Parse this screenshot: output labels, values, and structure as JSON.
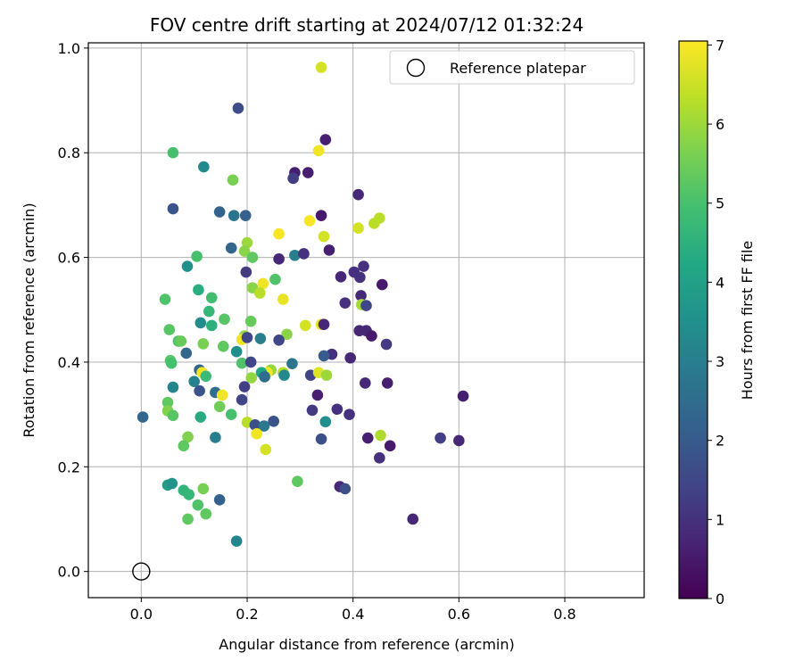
{
  "chart_data": {
    "type": "scatter",
    "title": "FOV centre drift starting at 2024/07/12 01:32:24",
    "xlabel": "Angular distance from reference (arcmin)",
    "ylabel": "Rotation from reference (arcmin)",
    "xlim": [
      -0.1,
      0.95
    ],
    "ylim": [
      -0.05,
      1.01
    ],
    "x_ticks": [
      "0.0",
      "0.2",
      "0.4",
      "0.6",
      "0.8"
    ],
    "y_ticks": [
      "0.0",
      "0.2",
      "0.4",
      "0.6",
      "0.8",
      "1.0"
    ],
    "grid": true,
    "colorbar": {
      "label": "Hours from first FF file",
      "colormap": "viridis",
      "range": [
        0,
        7.05
      ],
      "ticks": [
        "0",
        "1",
        "2",
        "3",
        "4",
        "5",
        "6",
        "7"
      ]
    },
    "legend": {
      "position": "top-right",
      "entries": [
        {
          "label": "Reference platepar",
          "marker": "open-circle",
          "x": 0.0,
          "y": 0.0
        }
      ]
    },
    "points": [
      [
        0.34,
        0.963,
        6.6
      ],
      [
        0.183,
        0.885,
        1.6
      ],
      [
        0.348,
        0.825,
        0.6
      ],
      [
        0.06,
        0.8,
        5.0
      ],
      [
        0.335,
        0.804,
        6.9
      ],
      [
        0.118,
        0.773,
        3.3
      ],
      [
        0.173,
        0.748,
        5.6
      ],
      [
        0.29,
        0.762,
        0.6
      ],
      [
        0.315,
        0.762,
        0.6
      ],
      [
        0.287,
        0.751,
        1.3
      ],
      [
        0.41,
        0.72,
        0.8
      ],
      [
        0.06,
        0.693,
        1.8
      ],
      [
        0.148,
        0.687,
        2.2
      ],
      [
        0.175,
        0.68,
        2.7
      ],
      [
        0.197,
        0.68,
        2.2
      ],
      [
        0.34,
        0.68,
        0.5
      ],
      [
        0.45,
        0.675,
        6.3
      ],
      [
        0.44,
        0.665,
        6.3
      ],
      [
        0.318,
        0.67,
        7.0
      ],
      [
        0.41,
        0.656,
        6.6
      ],
      [
        0.26,
        0.645,
        7.0
      ],
      [
        0.345,
        0.64,
        6.6
      ],
      [
        0.2,
        0.628,
        6.0
      ],
      [
        0.17,
        0.618,
        2.3
      ],
      [
        0.195,
        0.612,
        5.8
      ],
      [
        0.355,
        0.614,
        0.6
      ],
      [
        0.21,
        0.6,
        5.3
      ],
      [
        0.105,
        0.602,
        5.0
      ],
      [
        0.26,
        0.597,
        0.8
      ],
      [
        0.29,
        0.604,
        3.0
      ],
      [
        0.307,
        0.607,
        1.0
      ],
      [
        0.087,
        0.583,
        3.5
      ],
      [
        0.42,
        0.583,
        1.0
      ],
      [
        0.402,
        0.572,
        1.0
      ],
      [
        0.413,
        0.562,
        1.0
      ],
      [
        0.198,
        0.572,
        1.2
      ],
      [
        0.253,
        0.558,
        5.1
      ],
      [
        0.377,
        0.563,
        0.8
      ],
      [
        0.455,
        0.548,
        0.5
      ],
      [
        0.23,
        0.55,
        6.9
      ],
      [
        0.21,
        0.542,
        5.8
      ],
      [
        0.224,
        0.532,
        6.3
      ],
      [
        0.108,
        0.538,
        4.4
      ],
      [
        0.133,
        0.523,
        4.9
      ],
      [
        0.045,
        0.52,
        5.1
      ],
      [
        0.268,
        0.52,
        6.8
      ],
      [
        0.415,
        0.527,
        0.8
      ],
      [
        0.385,
        0.513,
        1.0
      ],
      [
        0.416,
        0.51,
        6.1
      ],
      [
        0.425,
        0.508,
        1.5
      ],
      [
        0.128,
        0.497,
        4.7
      ],
      [
        0.157,
        0.482,
        5.2
      ],
      [
        0.207,
        0.478,
        5.4
      ],
      [
        0.112,
        0.475,
        3.4
      ],
      [
        0.133,
        0.47,
        4.5
      ],
      [
        0.053,
        0.462,
        5.2
      ],
      [
        0.31,
        0.47,
        6.6
      ],
      [
        0.34,
        0.472,
        6.8
      ],
      [
        0.345,
        0.472,
        0.8
      ],
      [
        0.412,
        0.46,
        0.8
      ],
      [
        0.425,
        0.46,
        0.8
      ],
      [
        0.435,
        0.45,
        0.5
      ],
      [
        0.275,
        0.453,
        5.8
      ],
      [
        0.195,
        0.45,
        5.9
      ],
      [
        0.19,
        0.443,
        6.9
      ],
      [
        0.2,
        0.447,
        1.5
      ],
      [
        0.225,
        0.445,
        3.0
      ],
      [
        0.26,
        0.442,
        1.5
      ],
      [
        0.07,
        0.44,
        5.1
      ],
      [
        0.075,
        0.44,
        5.4
      ],
      [
        0.117,
        0.435,
        5.6
      ],
      [
        0.155,
        0.43,
        5.3
      ],
      [
        0.463,
        0.434,
        1.2
      ],
      [
        0.18,
        0.42,
        3.5
      ],
      [
        0.085,
        0.417,
        2.3
      ],
      [
        0.36,
        0.415,
        1.0
      ],
      [
        0.345,
        0.412,
        2.0
      ],
      [
        0.395,
        0.408,
        0.8
      ],
      [
        0.055,
        0.403,
        5.2
      ],
      [
        0.057,
        0.398,
        5.0
      ],
      [
        0.19,
        0.398,
        5.1
      ],
      [
        0.207,
        0.4,
        1.5
      ],
      [
        0.285,
        0.397,
        2.7
      ],
      [
        0.11,
        0.385,
        2.3
      ],
      [
        0.245,
        0.385,
        5.9
      ],
      [
        0.238,
        0.38,
        6.9
      ],
      [
        0.227,
        0.38,
        4.2
      ],
      [
        0.268,
        0.38,
        6.3
      ],
      [
        0.27,
        0.375,
        3.3
      ],
      [
        0.32,
        0.375,
        1.4
      ],
      [
        0.335,
        0.38,
        6.7
      ],
      [
        0.35,
        0.375,
        6.0
      ],
      [
        0.115,
        0.38,
        6.9
      ],
      [
        0.122,
        0.373,
        4.8
      ],
      [
        0.208,
        0.37,
        5.9
      ],
      [
        0.233,
        0.372,
        2.5
      ],
      [
        0.1,
        0.363,
        3.1
      ],
      [
        0.423,
        0.36,
        0.8
      ],
      [
        0.465,
        0.36,
        0.6
      ],
      [
        0.06,
        0.352,
        3.2
      ],
      [
        0.195,
        0.353,
        1.3
      ],
      [
        0.11,
        0.345,
        1.8
      ],
      [
        0.14,
        0.342,
        2.5
      ],
      [
        0.153,
        0.337,
        6.9
      ],
      [
        0.333,
        0.337,
        0.6
      ],
      [
        0.608,
        0.335,
        0.6
      ],
      [
        0.19,
        0.328,
        1.4
      ],
      [
        0.05,
        0.323,
        5.3
      ],
      [
        0.148,
        0.315,
        5.5
      ],
      [
        0.05,
        0.307,
        5.7
      ],
      [
        0.323,
        0.308,
        1.2
      ],
      [
        0.37,
        0.31,
        1.0
      ],
      [
        0.06,
        0.298,
        5.2
      ],
      [
        0.003,
        0.295,
        2.3
      ],
      [
        0.112,
        0.295,
        4.3
      ],
      [
        0.17,
        0.3,
        5.0
      ],
      [
        0.393,
        0.3,
        1.0
      ],
      [
        0.2,
        0.285,
        6.3
      ],
      [
        0.215,
        0.28,
        1.7
      ],
      [
        0.25,
        0.287,
        1.8
      ],
      [
        0.348,
        0.286,
        3.5
      ],
      [
        0.232,
        0.278,
        2.8
      ],
      [
        0.218,
        0.263,
        6.9
      ],
      [
        0.452,
        0.26,
        6.2
      ],
      [
        0.088,
        0.257,
        5.7
      ],
      [
        0.14,
        0.256,
        3.0
      ],
      [
        0.34,
        0.253,
        1.7
      ],
      [
        0.428,
        0.255,
        0.6
      ],
      [
        0.565,
        0.255,
        1.3
      ],
      [
        0.6,
        0.25,
        0.8
      ],
      [
        0.08,
        0.24,
        5.3
      ],
      [
        0.47,
        0.24,
        0.5
      ],
      [
        0.235,
        0.233,
        6.6
      ],
      [
        0.45,
        0.217,
        1.0
      ],
      [
        0.295,
        0.172,
        5.3
      ],
      [
        0.05,
        0.165,
        3.9
      ],
      [
        0.058,
        0.168,
        3.6
      ],
      [
        0.117,
        0.158,
        5.6
      ],
      [
        0.08,
        0.155,
        4.6
      ],
      [
        0.375,
        0.162,
        0.8
      ],
      [
        0.385,
        0.158,
        1.7
      ],
      [
        0.09,
        0.147,
        4.7
      ],
      [
        0.148,
        0.137,
        2.2
      ],
      [
        0.107,
        0.127,
        5.1
      ],
      [
        0.122,
        0.11,
        5.3
      ],
      [
        0.088,
        0.1,
        5.3
      ],
      [
        0.513,
        0.1,
        0.8
      ],
      [
        0.18,
        0.058,
        3.2
      ]
    ]
  }
}
